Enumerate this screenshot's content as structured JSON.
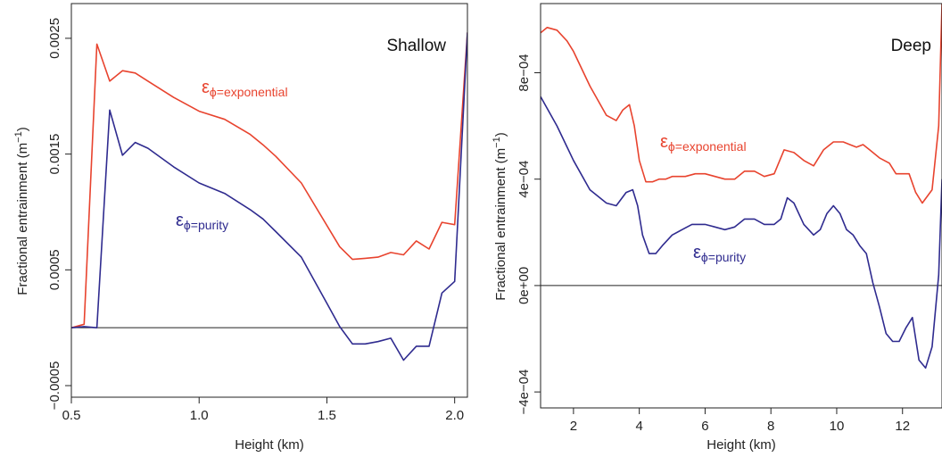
{
  "chart_data": [
    {
      "type": "line",
      "title": "Shallow",
      "xlabel": "Height (km)",
      "ylabel": "Fractional entrainment (m",
      "ylabel_unit_sup": "−1",
      "ylabel_close": ")",
      "xlim": [
        0.5,
        2.05
      ],
      "ylim": [
        -0.0006,
        0.0028
      ],
      "xticks": [
        0.5,
        1.0,
        1.5,
        2.0
      ],
      "xtick_labels": [
        "0.5",
        "1.0",
        "1.5",
        "2.0"
      ],
      "yticks": [
        -0.0005,
        0.0005,
        0.0015,
        0.0025
      ],
      "ytick_labels": [
        "−0.0005",
        "0.0005",
        "0.0015",
        "0.0025"
      ],
      "zero_line": 0,
      "series": [
        {
          "name": "ε",
          "name_sub": "ϕ=exponential",
          "color": "#e8432e",
          "x": [
            0.5,
            0.55,
            0.6,
            0.65,
            0.7,
            0.75,
            0.8,
            0.9,
            1.0,
            1.1,
            1.2,
            1.25,
            1.3,
            1.4,
            1.55,
            1.6,
            1.65,
            1.7,
            1.75,
            1.8,
            1.85,
            1.9,
            1.95,
            2.0,
            2.05
          ],
          "y": [
            0.0,
            3e-05,
            0.00245,
            0.00213,
            0.00222,
            0.0022,
            0.00213,
            0.00199,
            0.00187,
            0.0018,
            0.00167,
            0.00158,
            0.00148,
            0.00125,
            0.0007,
            0.00059,
            0.0006,
            0.00061,
            0.00065,
            0.00063,
            0.00075,
            0.00068,
            0.00091,
            0.00089,
            0.00255
          ]
        },
        {
          "name": "ε",
          "name_sub": "ϕ=purity",
          "color": "#2f2b8f",
          "x": [
            0.5,
            0.55,
            0.6,
            0.65,
            0.7,
            0.75,
            0.8,
            0.9,
            1.0,
            1.1,
            1.2,
            1.25,
            1.3,
            1.4,
            1.5,
            1.55,
            1.6,
            1.65,
            1.7,
            1.75,
            1.8,
            1.85,
            1.9,
            1.95,
            2.0,
            2.05
          ],
          "y": [
            0.0,
            1e-05,
            0.0,
            0.00188,
            0.00149,
            0.0016,
            0.00155,
            0.00139,
            0.00125,
            0.00116,
            0.00102,
            0.00094,
            0.00083,
            0.00061,
            0.00021,
            1e-05,
            -0.00014,
            -0.00014,
            -0.00012,
            -9e-05,
            -0.00028,
            -0.00016,
            -0.00016,
            0.0003,
            0.0004,
            0.00255
          ]
        }
      ]
    },
    {
      "type": "line",
      "title": "Deep",
      "xlabel": "Height (km)",
      "ylabel": "Fractional entrainment (m",
      "ylabel_unit_sup": "−1",
      "ylabel_close": ")",
      "xlim": [
        1,
        13.2
      ],
      "ylim": [
        -0.00046,
        0.00106
      ],
      "xticks": [
        2,
        4,
        6,
        8,
        10,
        12
      ],
      "xtick_labels": [
        "2",
        "4",
        "6",
        "8",
        "10",
        "12"
      ],
      "yticks": [
        -0.0004,
        0.0,
        0.0004,
        0.0008
      ],
      "ytick_labels": [
        "−4e−04",
        "0e+00",
        "4e−04",
        "8e−04"
      ],
      "zero_line": 0,
      "series": [
        {
          "name": "ε",
          "name_sub": "ϕ=exponential",
          "color": "#e8432e",
          "x": [
            1.0,
            1.2,
            1.5,
            1.8,
            2.0,
            2.5,
            3.0,
            3.3,
            3.5,
            3.7,
            3.85,
            4.0,
            4.2,
            4.4,
            4.6,
            4.8,
            5.0,
            5.2,
            5.4,
            5.7,
            6.0,
            6.3,
            6.6,
            6.9,
            7.2,
            7.5,
            7.8,
            8.1,
            8.4,
            8.7,
            9.0,
            9.3,
            9.6,
            9.9,
            10.2,
            10.4,
            10.6,
            10.8,
            11.0,
            11.3,
            11.6,
            11.8,
            12.0,
            12.2,
            12.4,
            12.6,
            12.9,
            13.1,
            13.2
          ],
          "y": [
            0.00095,
            0.00097,
            0.00096,
            0.00092,
            0.00088,
            0.00075,
            0.00064,
            0.00062,
            0.00066,
            0.00068,
            0.0006,
            0.00047,
            0.00039,
            0.00039,
            0.0004,
            0.0004,
            0.00041,
            0.00041,
            0.00041,
            0.00042,
            0.00042,
            0.00041,
            0.0004,
            0.0004,
            0.00043,
            0.00043,
            0.00041,
            0.00042,
            0.00051,
            0.0005,
            0.00047,
            0.00045,
            0.00051,
            0.00054,
            0.00054,
            0.00053,
            0.00052,
            0.00053,
            0.00051,
            0.00048,
            0.00046,
            0.00042,
            0.00042,
            0.00042,
            0.00035,
            0.00031,
            0.00036,
            0.0006,
            0.00106
          ]
        },
        {
          "name": "ε",
          "name_sub": "ϕ=purity",
          "color": "#2f2b8f",
          "x": [
            1.0,
            1.5,
            2.0,
            2.5,
            3.0,
            3.3,
            3.6,
            3.8,
            3.95,
            4.1,
            4.3,
            4.5,
            4.7,
            5.0,
            5.3,
            5.6,
            6.0,
            6.3,
            6.6,
            6.9,
            7.2,
            7.5,
            7.8,
            8.1,
            8.3,
            8.5,
            8.7,
            9.0,
            9.3,
            9.5,
            9.7,
            9.9,
            10.1,
            10.3,
            10.5,
            10.7,
            10.9,
            11.1,
            11.3,
            11.5,
            11.7,
            11.9,
            12.1,
            12.3,
            12.5,
            12.7,
            12.9,
            13.1,
            13.2
          ],
          "y": [
            0.00071,
            0.0006,
            0.00047,
            0.00036,
            0.00031,
            0.0003,
            0.00035,
            0.00036,
            0.0003,
            0.00019,
            0.00012,
            0.00012,
            0.00015,
            0.00019,
            0.00021,
            0.00023,
            0.00023,
            0.00022,
            0.00021,
            0.00022,
            0.00025,
            0.00025,
            0.00023,
            0.00023,
            0.00025,
            0.00033,
            0.00031,
            0.00023,
            0.00019,
            0.00021,
            0.00027,
            0.0003,
            0.00027,
            0.00021,
            0.00019,
            0.00015,
            0.00012,
            1e-05,
            -8e-05,
            -0.00018,
            -0.00021,
            -0.00021,
            -0.00016,
            -0.00012,
            -0.00028,
            -0.00031,
            -0.00023,
            4e-05,
            0.0004
          ]
        }
      ]
    }
  ]
}
